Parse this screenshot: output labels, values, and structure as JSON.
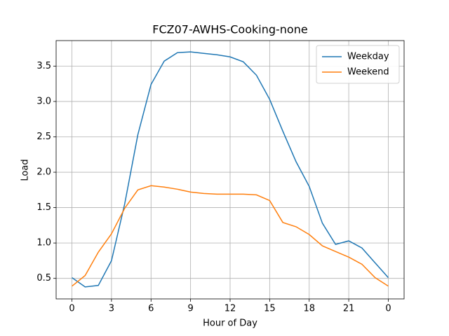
{
  "chart_data": {
    "type": "line",
    "title": "FCZ07-AWHS-Cooking-none",
    "xlabel": "Hour of Day",
    "ylabel": "Load",
    "x": [
      0,
      1,
      2,
      3,
      4,
      5,
      6,
      7,
      8,
      9,
      10,
      11,
      12,
      13,
      14,
      15,
      16,
      17,
      18,
      19,
      20,
      21,
      22,
      23,
      24
    ],
    "series": [
      {
        "name": "Weekday",
        "color": "#1f77b4",
        "values": [
          0.51,
          0.38,
          0.4,
          0.75,
          1.55,
          2.53,
          3.24,
          3.57,
          3.69,
          3.7,
          3.68,
          3.66,
          3.63,
          3.56,
          3.37,
          3.03,
          2.58,
          2.15,
          1.8,
          1.28,
          0.98,
          1.03,
          0.93,
          0.72,
          0.51
        ]
      },
      {
        "name": "Weekend",
        "color": "#ff7f0e",
        "values": [
          0.39,
          0.54,
          0.87,
          1.13,
          1.49,
          1.75,
          1.81,
          1.79,
          1.76,
          1.72,
          1.7,
          1.69,
          1.69,
          1.69,
          1.68,
          1.6,
          1.29,
          1.23,
          1.12,
          0.96,
          0.88,
          0.8,
          0.7,
          0.51,
          0.39
        ]
      }
    ],
    "xlim": [
      -1.2,
      25.2
    ],
    "xticks": [
      0,
      3,
      6,
      9,
      12,
      15,
      18,
      21,
      {
        "value": 24,
        "label": "0"
      }
    ],
    "ylim": [
      0.21,
      3.86
    ],
    "yticks": [
      0.5,
      {
        "value": 1,
        "label": "1.0"
      },
      1.5,
      {
        "value": 2,
        "label": "2.0"
      },
      2.5,
      {
        "value": 3,
        "label": "3.0"
      },
      3.5
    ],
    "grid": true,
    "legend": "upper-right"
  }
}
